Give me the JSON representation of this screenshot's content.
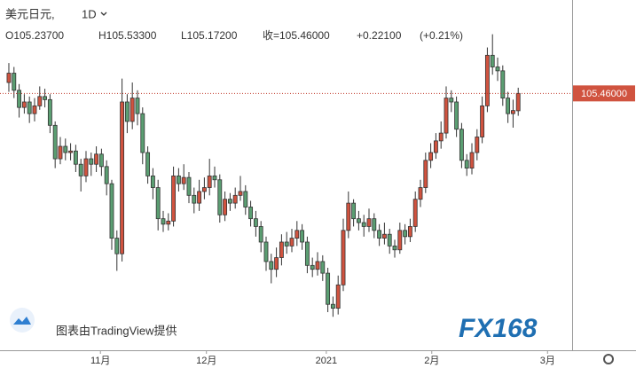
{
  "header": {
    "symbol": "美元日元,",
    "interval": "1D",
    "open": "O105.23700",
    "high": "H105.53300",
    "low": "L105.17200",
    "close": "收=105.46000",
    "change": "+0.22100",
    "change_pct": "(+0.21%)"
  },
  "chart_data": {
    "type": "candlestick",
    "up_color": "#d0533f",
    "down_color": "#5b9e72",
    "open": [
      105.6,
      105.72,
      105.5,
      105.28,
      105.35,
      105.2,
      105.3,
      105.42,
      105.38,
      105.05,
      104.62,
      104.78,
      104.7,
      104.72,
      104.55,
      104.4,
      104.62,
      104.55,
      104.68,
      104.52,
      104.3,
      103.6,
      103.4,
      105.35,
      105.1,
      105.4,
      105.2,
      104.7,
      104.4,
      104.25,
      103.85,
      103.78,
      103.82,
      104.4,
      104.3,
      104.38,
      104.15,
      104.05,
      104.2,
      104.25,
      104.4,
      104.35,
      103.9,
      104.1,
      104.05,
      104.15,
      104.2,
      104.0,
      103.85,
      103.75,
      103.55,
      103.3,
      103.2,
      103.35,
      103.55,
      103.5,
      103.6,
      103.7,
      103.55,
      103.25,
      103.2,
      103.3,
      103.15,
      102.75,
      102.7,
      103.0,
      103.7,
      104.05,
      103.85,
      103.8,
      103.75,
      103.85,
      103.7,
      103.6,
      103.65,
      103.5,
      103.45,
      103.7,
      103.62,
      103.75,
      104.1,
      104.25,
      104.6,
      104.7,
      104.85,
      104.95,
      105.4,
      105.35,
      105.0,
      104.6,
      104.5,
      104.7,
      104.9,
      105.3,
      105.95,
      105.8,
      105.75,
      105.4,
      105.2,
      105.237
    ],
    "high": [
      105.85,
      105.8,
      105.58,
      105.45,
      105.42,
      105.4,
      105.55,
      105.52,
      105.45,
      105.1,
      104.9,
      104.88,
      104.82,
      104.8,
      104.62,
      104.72,
      104.7,
      104.78,
      104.75,
      104.6,
      104.35,
      103.7,
      105.65,
      105.45,
      105.6,
      105.5,
      105.28,
      104.78,
      104.5,
      104.35,
      103.95,
      103.92,
      104.52,
      104.5,
      104.55,
      104.45,
      104.25,
      104.35,
      104.38,
      104.62,
      104.52,
      104.42,
      104.2,
      104.18,
      104.25,
      104.4,
      104.28,
      104.08,
      103.95,
      103.82,
      103.62,
      103.4,
      103.48,
      103.65,
      103.68,
      103.72,
      103.82,
      103.78,
      103.62,
      103.35,
      103.42,
      103.38,
      103.22,
      102.85,
      103.12,
      103.85,
      104.2,
      104.1,
      103.95,
      103.9,
      103.98,
      103.92,
      103.78,
      103.8,
      103.72,
      103.58,
      103.8,
      103.78,
      103.85,
      104.2,
      104.35,
      104.7,
      104.82,
      104.95,
      105.1,
      105.55,
      105.5,
      105.42,
      105.08,
      104.68,
      104.82,
      105.0,
      105.42,
      106.05,
      106.22,
      105.92,
      105.82,
      105.48,
      105.38,
      105.533
    ],
    "low": [
      105.48,
      105.4,
      105.15,
      105.2,
      105.08,
      105.1,
      105.25,
      105.28,
      104.95,
      104.5,
      104.55,
      104.6,
      104.6,
      104.45,
      104.2,
      104.32,
      104.4,
      104.45,
      104.4,
      104.15,
      103.45,
      103.18,
      103.3,
      104.95,
      105.0,
      105.05,
      104.55,
      104.3,
      104.1,
      103.7,
      103.68,
      103.7,
      103.75,
      104.2,
      104.22,
      104.05,
      103.92,
      103.95,
      104.1,
      104.15,
      104.25,
      103.8,
      103.82,
      103.95,
      103.98,
      104.08,
      103.9,
      103.75,
      103.62,
      103.42,
      103.18,
      103.02,
      103.1,
      103.25,
      103.4,
      103.42,
      103.5,
      103.45,
      103.15,
      103.1,
      103.12,
      103.05,
      102.65,
      102.59,
      102.62,
      102.92,
      103.6,
      103.75,
      103.7,
      103.62,
      103.68,
      103.6,
      103.5,
      103.52,
      103.4,
      103.35,
      103.4,
      103.52,
      103.55,
      103.68,
      104.0,
      104.18,
      104.5,
      104.62,
      104.75,
      104.88,
      105.22,
      104.9,
      104.5,
      104.4,
      104.42,
      104.6,
      104.82,
      105.22,
      105.7,
      105.62,
      105.3,
      105.08,
      105.02,
      105.172
    ],
    "close": [
      105.72,
      105.5,
      105.28,
      105.35,
      105.2,
      105.3,
      105.42,
      105.38,
      105.05,
      104.62,
      104.78,
      104.7,
      104.72,
      104.55,
      104.4,
      104.62,
      104.55,
      104.68,
      104.52,
      104.3,
      103.6,
      103.4,
      105.35,
      105.1,
      105.4,
      105.2,
      104.7,
      104.4,
      104.25,
      103.85,
      103.78,
      103.82,
      104.4,
      104.3,
      104.38,
      104.15,
      104.05,
      104.2,
      104.25,
      104.4,
      104.35,
      103.9,
      104.1,
      104.05,
      104.15,
      104.2,
      104.0,
      103.85,
      103.75,
      103.55,
      103.3,
      103.2,
      103.35,
      103.55,
      103.5,
      103.6,
      103.7,
      103.55,
      103.25,
      103.2,
      103.3,
      103.15,
      102.75,
      102.7,
      103.0,
      103.7,
      104.05,
      103.85,
      103.8,
      103.75,
      103.85,
      103.7,
      103.6,
      103.65,
      103.5,
      103.45,
      103.7,
      103.62,
      103.75,
      104.1,
      104.25,
      104.6,
      104.7,
      104.85,
      104.95,
      105.4,
      105.35,
      105.0,
      104.6,
      104.5,
      104.7,
      104.9,
      105.3,
      105.95,
      105.8,
      105.75,
      105.4,
      105.2,
      105.24,
      105.46
    ],
    "last_price_label": "105.46000",
    "xlim": [
      -1.72,
      109.48
    ],
    "xticks": [
      {
        "value": 17.8,
        "label": "11月"
      },
      {
        "value": 38.4,
        "label": "12月"
      },
      {
        "value": 61.7,
        "label": "2021"
      },
      {
        "value": 82.2,
        "label": "2月"
      },
      {
        "value": 104.7,
        "label": "3月"
      }
    ],
    "ylim": [
      102.16,
      106.66
    ]
  },
  "watermark": "图表由TradingView提供",
  "logo": "FX168"
}
